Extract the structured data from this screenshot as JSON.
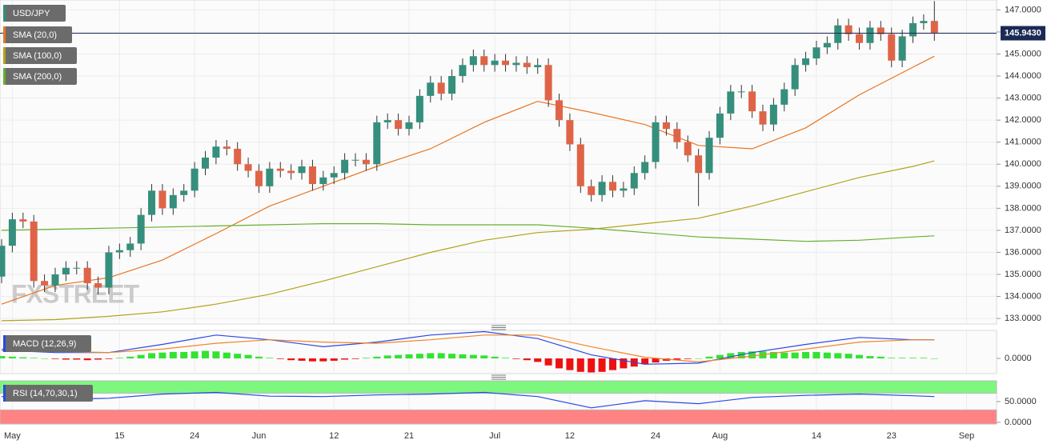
{
  "chart_data": [
    {
      "type": "candlestick",
      "name": "USD/JPY",
      "up_color": "#358f7c",
      "down_color": "#df6447",
      "watermark": "FXSTREET",
      "grid": true,
      "x": [
        0,
        1,
        2,
        3,
        4,
        5,
        6,
        7,
        8,
        9,
        10,
        11,
        12,
        13,
        14,
        15,
        16,
        17,
        18,
        19,
        20,
        21,
        22,
        23,
        24,
        25,
        26,
        27,
        28,
        29,
        30,
        31,
        32,
        33,
        34,
        35,
        36,
        37,
        38,
        39,
        40,
        41,
        42,
        43,
        44,
        45,
        46,
        47,
        48,
        49,
        50,
        51,
        52,
        53,
        54,
        55,
        56,
        57,
        58,
        59,
        60,
        61,
        62,
        63,
        64,
        65,
        66,
        67,
        68,
        69,
        70,
        71,
        72,
        73,
        74,
        75,
        76,
        77,
        78,
        79,
        80,
        81,
        82,
        83,
        84,
        85,
        86,
        87
      ],
      "open": [
        134.9,
        136.3,
        137.5,
        137.4,
        134.7,
        134.5,
        135.0,
        135.3,
        135.3,
        134.6,
        134.4,
        136.0,
        136.1,
        136.4,
        137.7,
        138.8,
        138.0,
        138.6,
        138.8,
        139.8,
        140.3,
        140.8,
        140.7,
        140.0,
        139.7,
        139.0,
        139.8,
        139.7,
        139.6,
        139.9,
        139.1,
        139.4,
        139.6,
        140.2,
        140.2,
        140.0,
        141.9,
        142.0,
        141.6,
        141.9,
        143.1,
        143.7,
        143.2,
        144.0,
        144.5,
        144.9,
        144.5,
        144.7,
        144.5,
        144.6,
        144.4,
        144.5,
        142.9,
        142.0,
        140.9,
        139.0,
        138.6,
        139.2,
        138.8,
        138.9,
        139.6,
        140.1,
        141.9,
        141.6,
        141.0,
        140.4,
        139.6,
        141.2,
        142.3,
        143.3,
        143.3,
        142.4,
        141.8,
        142.7,
        143.4,
        144.5,
        144.8,
        145.3,
        145.5,
        146.3,
        145.9,
        145.5,
        146.2,
        145.9,
        144.7,
        145.8,
        146.4,
        146.5
      ],
      "high": [
        136.6,
        137.8,
        137.8,
        137.7,
        135.0,
        135.3,
        135.6,
        135.6,
        135.6,
        134.9,
        136.3,
        136.4,
        136.7,
        138.0,
        139.1,
        139.1,
        138.9,
        139.1,
        140.1,
        140.6,
        141.1,
        141.1,
        141.0,
        140.3,
        140.0,
        140.1,
        140.1,
        140.0,
        140.2,
        140.2,
        139.7,
        139.9,
        140.5,
        140.5,
        140.5,
        142.2,
        142.3,
        142.3,
        142.2,
        143.4,
        144.0,
        144.0,
        144.3,
        144.8,
        145.2,
        145.2,
        145.0,
        145.0,
        144.9,
        144.9,
        144.8,
        144.8,
        143.2,
        142.3,
        141.2,
        139.3,
        139.5,
        139.5,
        139.2,
        139.9,
        140.4,
        142.2,
        142.2,
        141.9,
        141.3,
        140.7,
        141.5,
        142.6,
        143.6,
        143.6,
        143.6,
        142.7,
        143.0,
        143.7,
        144.8,
        145.1,
        145.6,
        145.8,
        146.6,
        146.6,
        146.2,
        146.5,
        146.5,
        146.2,
        146.1,
        146.7,
        146.8,
        147.4
      ],
      "low": [
        134.6,
        136.0,
        137.1,
        134.4,
        134.2,
        134.2,
        134.7,
        135.0,
        134.3,
        134.1,
        134.1,
        135.7,
        135.8,
        136.1,
        137.4,
        137.7,
        137.7,
        138.3,
        138.5,
        139.5,
        140.0,
        140.4,
        139.7,
        139.4,
        138.7,
        138.7,
        139.4,
        139.3,
        139.3,
        138.8,
        138.8,
        139.1,
        139.3,
        139.9,
        139.7,
        139.7,
        141.6,
        141.3,
        141.3,
        141.6,
        142.8,
        142.9,
        142.9,
        143.7,
        144.2,
        144.2,
        144.2,
        144.2,
        144.2,
        144.1,
        144.1,
        142.6,
        141.7,
        140.6,
        138.7,
        138.3,
        138.3,
        138.5,
        138.5,
        138.6,
        139.3,
        139.8,
        141.3,
        140.7,
        140.1,
        138.1,
        139.3,
        140.9,
        142.0,
        143.0,
        142.1,
        141.5,
        141.5,
        142.4,
        143.1,
        144.2,
        144.5,
        145.0,
        145.2,
        145.6,
        145.2,
        145.2,
        145.6,
        144.4,
        144.4,
        145.5,
        146.1,
        145.6
      ],
      "close": [
        136.3,
        137.5,
        137.4,
        134.7,
        134.5,
        135.0,
        135.3,
        135.3,
        134.6,
        134.4,
        136.0,
        136.1,
        136.4,
        137.7,
        138.8,
        138.0,
        138.6,
        138.8,
        139.8,
        140.3,
        140.8,
        140.7,
        140.0,
        139.7,
        139.0,
        139.8,
        139.7,
        139.6,
        139.9,
        139.1,
        139.4,
        139.6,
        140.2,
        140.2,
        140.0,
        141.9,
        142.0,
        141.6,
        141.9,
        143.1,
        143.7,
        143.2,
        144.0,
        144.5,
        144.9,
        144.5,
        144.7,
        144.5,
        144.6,
        144.4,
        144.5,
        142.9,
        142.0,
        140.9,
        139.0,
        138.6,
        139.2,
        138.8,
        138.9,
        139.6,
        140.1,
        141.9,
        141.6,
        141.0,
        140.4,
        139.6,
        141.2,
        142.3,
        143.3,
        143.3,
        142.4,
        141.8,
        142.7,
        143.4,
        144.5,
        144.8,
        145.3,
        145.5,
        146.3,
        145.9,
        145.5,
        146.2,
        145.9,
        144.7,
        145.8,
        146.4,
        146.5,
        145.94
      ],
      "lines": [
        {
          "name": "SMA (20,0)",
          "color": "#ea7420",
          "x": [
            0,
            5,
            10,
            15,
            20,
            25,
            30,
            35,
            40,
            45,
            50,
            55,
            60,
            65,
            70,
            75,
            80,
            85,
            87
          ],
          "values": [
            133.65,
            134.5,
            134.85,
            135.65,
            136.85,
            138.1,
            139.0,
            139.9,
            140.7,
            141.9,
            142.85,
            142.35,
            141.8,
            140.85,
            140.7,
            141.65,
            143.15,
            144.4,
            144.9
          ]
        },
        {
          "name": "SMA (100,0)",
          "color": "#b3a21c",
          "x": [
            0,
            5,
            10,
            15,
            20,
            25,
            30,
            35,
            40,
            45,
            50,
            55,
            60,
            65,
            70,
            75,
            80,
            85,
            87
          ],
          "values": [
            132.9,
            132.95,
            133.1,
            133.3,
            133.65,
            134.1,
            134.7,
            135.35,
            136.0,
            136.55,
            136.9,
            137.05,
            137.3,
            137.55,
            138.1,
            138.75,
            139.4,
            139.9,
            140.15
          ]
        },
        {
          "name": "SMA (200,0)",
          "color": "#66b02c",
          "x": [
            0,
            5,
            10,
            15,
            20,
            25,
            30,
            35,
            40,
            45,
            50,
            55,
            60,
            65,
            70,
            75,
            80,
            85,
            87
          ],
          "values": [
            137.0,
            137.05,
            137.1,
            137.15,
            137.2,
            137.25,
            137.3,
            137.3,
            137.25,
            137.25,
            137.25,
            137.1,
            136.9,
            136.7,
            136.6,
            136.5,
            136.55,
            136.7,
            136.75
          ]
        }
      ],
      "last": {
        "value": 145.943,
        "label": "145.9430"
      },
      "xlim": [
        -0.15,
        92.8
      ],
      "xticks": [
        {
          "value": 1,
          "label": "May"
        },
        {
          "value": 11,
          "label": "15"
        },
        {
          "value": 18,
          "label": "24"
        },
        {
          "value": 24,
          "label": "Jun"
        },
        {
          "value": 31,
          "label": "12"
        },
        {
          "value": 38,
          "label": "21"
        },
        {
          "value": 46,
          "label": "Jul"
        },
        {
          "value": 53,
          "label": "12"
        },
        {
          "value": 61,
          "label": "24"
        },
        {
          "value": 67,
          "label": "Aug"
        },
        {
          "value": 76,
          "label": "14"
        },
        {
          "value": 83,
          "label": "23"
        },
        {
          "value": 90,
          "label": "Sep"
        }
      ],
      "ylim": [
        132.75,
        147.45
      ],
      "yticks": [
        {
          "value": 133,
          "label": "133.0000"
        },
        {
          "value": 134,
          "label": "134.0000"
        },
        {
          "value": 135,
          "label": "135.0000"
        },
        {
          "value": 136,
          "label": "136.0000"
        },
        {
          "value": 137,
          "label": "137.0000"
        },
        {
          "value": 138,
          "label": "138.0000"
        },
        {
          "value": 139,
          "label": "139.0000"
        },
        {
          "value": 140,
          "label": "140.0000"
        },
        {
          "value": 141,
          "label": "141.0000"
        },
        {
          "value": 142,
          "label": "142.0000"
        },
        {
          "value": 143,
          "label": "143.0000"
        },
        {
          "value": 144,
          "label": "144.0000"
        },
        {
          "value": 145,
          "label": "145.0000"
        },
        {
          "value": 146,
          "label": "146.0000"
        },
        {
          "value": 147,
          "label": "147.0000"
        }
      ]
    },
    {
      "type": "macd",
      "name": "MACD (12,26,9)",
      "legend_color": "#2a47e6",
      "up_color": "#33e233",
      "down_color": "#ee1111",
      "x": [
        0,
        1,
        2,
        3,
        4,
        5,
        6,
        7,
        8,
        9,
        10,
        11,
        12,
        13,
        14,
        15,
        16,
        17,
        18,
        19,
        20,
        21,
        22,
        23,
        24,
        25,
        26,
        27,
        28,
        29,
        30,
        31,
        32,
        33,
        34,
        35,
        36,
        37,
        38,
        39,
        40,
        41,
        42,
        43,
        44,
        45,
        46,
        47,
        48,
        49,
        50,
        51,
        52,
        53,
        54,
        55,
        56,
        57,
        58,
        59,
        60,
        61,
        62,
        63,
        64,
        65,
        66,
        67,
        68,
        69,
        70,
        71,
        72,
        73,
        74,
        75,
        76,
        77,
        78,
        79,
        80,
        81,
        82,
        83,
        84,
        85,
        86,
        87
      ],
      "histogram": [
        0.2,
        0.15,
        0.1,
        0.05,
        0.0,
        -0.05,
        -0.1,
        -0.1,
        -0.15,
        -0.1,
        -0.05,
        0.05,
        0.15,
        0.3,
        0.45,
        0.5,
        0.55,
        0.55,
        0.6,
        0.65,
        0.6,
        0.5,
        0.4,
        0.3,
        0.15,
        0.05,
        -0.05,
        -0.15,
        -0.2,
        -0.25,
        -0.25,
        -0.2,
        -0.1,
        -0.05,
        0.05,
        0.15,
        0.25,
        0.3,
        0.35,
        0.4,
        0.45,
        0.45,
        0.4,
        0.35,
        0.3,
        0.25,
        0.15,
        0.05,
        -0.05,
        -0.15,
        -0.3,
        -0.6,
        -0.85,
        -1.0,
        -1.15,
        -1.2,
        -1.15,
        -1.0,
        -0.85,
        -0.7,
        -0.5,
        -0.35,
        -0.2,
        -0.1,
        -0.05,
        0.0,
        0.15,
        0.3,
        0.45,
        0.55,
        0.6,
        0.6,
        0.55,
        0.5,
        0.5,
        0.55,
        0.55,
        0.5,
        0.45,
        0.4,
        0.3,
        0.2,
        0.15,
        0.05,
        0.05,
        0.05,
        0.05,
        0.0
      ],
      "lines": [
        {
          "color": "#2a47e6",
          "x": [
            0,
            5,
            10,
            15,
            20,
            25,
            30,
            35,
            40,
            45,
            50,
            55,
            60,
            65,
            70,
            75,
            80,
            85,
            87
          ],
          "values": [
            0.7,
            0.5,
            0.5,
            1.2,
            2.0,
            1.6,
            1.0,
            1.4,
            2.0,
            2.3,
            1.7,
            0.3,
            -0.5,
            -0.4,
            0.5,
            1.2,
            1.8,
            1.6,
            1.6
          ]
        },
        {
          "color": "#f0852a",
          "x": [
            0,
            5,
            10,
            15,
            20,
            25,
            30,
            35,
            40,
            45,
            50,
            55,
            60,
            65,
            70,
            75,
            80,
            85,
            87
          ],
          "values": [
            0.8,
            0.6,
            0.5,
            0.8,
            1.3,
            1.6,
            1.4,
            1.3,
            1.6,
            2.0,
            2.0,
            1.0,
            0.1,
            -0.3,
            0.2,
            0.8,
            1.4,
            1.6,
            1.6
          ]
        }
      ],
      "ylim": [
        -1.3,
        2.4
      ],
      "yticks": [
        {
          "value": 0,
          "label": "0.0000"
        }
      ]
    },
    {
      "type": "rsi",
      "name": "RSI (14,70,30,1)",
      "legend_color": "#2a47e6",
      "upper": 70,
      "lower": 30,
      "upper_color": "#7ef77e",
      "lower_color": "#ff8383",
      "lines": [
        {
          "color": "#2a47e6",
          "x": [
            0,
            5,
            10,
            15,
            20,
            25,
            30,
            35,
            40,
            45,
            50,
            55,
            60,
            65,
            70,
            75,
            80,
            85,
            87
          ],
          "values": [
            62,
            55,
            58,
            68,
            72,
            63,
            62,
            66,
            68,
            72,
            62,
            35,
            52,
            45,
            60,
            65,
            68,
            64,
            62
          ]
        }
      ],
      "ylim": [
        -4,
        100
      ],
      "yticks": [
        {
          "value": 0,
          "label": "0.0000"
        },
        {
          "value": 50,
          "label": "50.0000"
        }
      ]
    }
  ]
}
